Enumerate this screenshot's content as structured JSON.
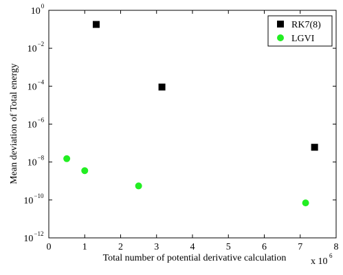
{
  "chart_data": {
    "type": "scatter",
    "xlabel": "Total number of potential derivative calculation",
    "ylabel": "Mean deviation of Total energy",
    "x_multiplier_label": {
      "base": "x 10",
      "exponent": "6"
    },
    "xlim": [
      0,
      8
    ],
    "ylim": [
      1e-12,
      1
    ],
    "yscale": "log",
    "x_ticks": [
      {
        "value": 0,
        "label": "0"
      },
      {
        "value": 1,
        "label": "1"
      },
      {
        "value": 2,
        "label": "2"
      },
      {
        "value": 3,
        "label": "3"
      },
      {
        "value": 4,
        "label": "4"
      },
      {
        "value": 5,
        "label": "5"
      },
      {
        "value": 6,
        "label": "6"
      },
      {
        "value": 7,
        "label": "7"
      },
      {
        "value": 8,
        "label": "8"
      }
    ],
    "y_ticks": [
      {
        "value": 1,
        "base": "10",
        "exp": "0"
      },
      {
        "value": 0.01,
        "base": "10",
        "exp": "−2"
      },
      {
        "value": 0.0001,
        "base": "10",
        "exp": "−4"
      },
      {
        "value": 1e-06,
        "base": "10",
        "exp": "−6"
      },
      {
        "value": 1e-08,
        "base": "10",
        "exp": "−8"
      },
      {
        "value": 1e-10,
        "base": "10",
        "exp": "−10"
      },
      {
        "value": 1e-12,
        "base": "10",
        "exp": "−12"
      }
    ],
    "grid": false,
    "legend_position": "top-right",
    "series": [
      {
        "name": "RK7(8)",
        "marker": "square",
        "color": "#000000",
        "points": [
          {
            "x": 1.32,
            "y": 0.18
          },
          {
            "x": 3.15,
            "y": 9e-05
          },
          {
            "x": 7.4,
            "y": 6e-08
          }
        ]
      },
      {
        "name": "LGVI",
        "marker": "circle",
        "color": "#22ee22",
        "points": [
          {
            "x": 0.5,
            "y": 1.5e-08
          },
          {
            "x": 1.0,
            "y": 3.5e-09
          },
          {
            "x": 2.5,
            "y": 5.5e-10
          },
          {
            "x": 7.15,
            "y": 7e-11
          }
        ]
      }
    ]
  }
}
